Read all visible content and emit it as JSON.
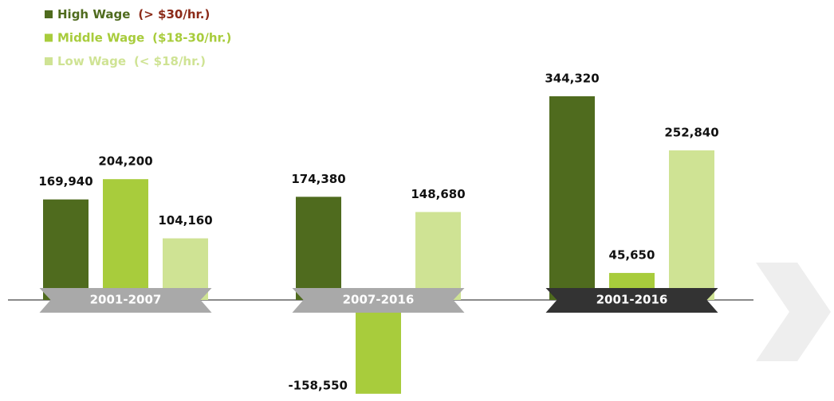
{
  "chart_data": {
    "type": "bar",
    "categories": [
      "2001-2007",
      "2007-2016",
      "2001-2016"
    ],
    "category_colors": [
      "#a9a9a9",
      "#a9a9a9",
      "#333333"
    ],
    "series": [
      {
        "name": "High Wage",
        "range": "(> $30/hr.)",
        "color": "#4f6b1e",
        "range_color": "#8b2a18",
        "values": [
          169940,
          174380,
          344320
        ],
        "value_labels": [
          "169,940",
          "174,380",
          "344,320"
        ]
      },
      {
        "name": "Middle Wage",
        "range": "($18-30/hr.)",
        "color": "#a8cc3c",
        "range_color": "#a8cc3c",
        "values": [
          204200,
          -158550,
          45650
        ],
        "value_labels": [
          "204,200",
          "-158,550",
          "45,650"
        ]
      },
      {
        "name": "Low Wage",
        "range": "(< $18/hr.)",
        "color": "#cfe394",
        "range_color": "#cfe394",
        "values": [
          104160,
          148680,
          252840
        ],
        "value_labels": [
          "104,160",
          "148,680",
          "252,840"
        ]
      }
    ]
  }
}
